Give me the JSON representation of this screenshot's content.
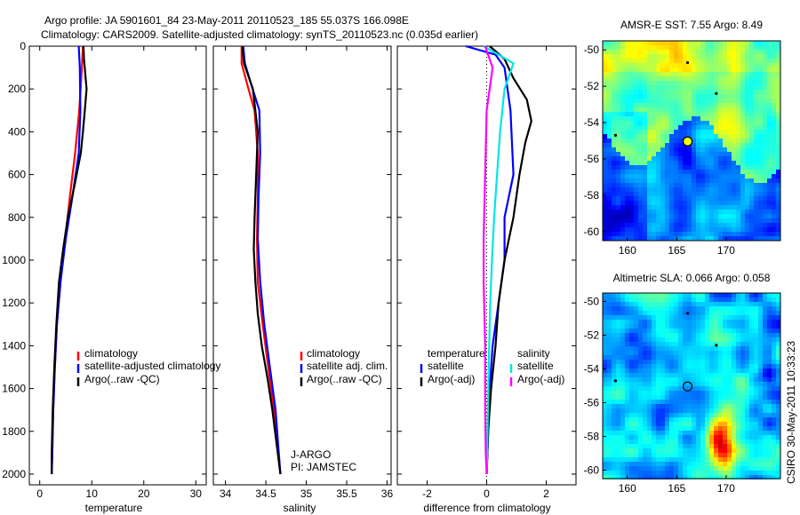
{
  "header": {
    "line1": "Argo profile: JA 5901601_84 23-May-2011 20110523_185 55.037S 166.098E",
    "line2": "Climatology: CARS2009. Satellite-adjusted climatology: synTS_20110523.nc (0.035d earlier)"
  },
  "footer": {
    "credit": "CSIRO 30-May-2011 10:33:23",
    "agency": "J-ARGO",
    "pi": "PI: JAMSTEC"
  },
  "colors": {
    "climatology": "#ff0000",
    "satellite": "#0000ff",
    "argo": "#000000",
    "salinity_satellite": "#00e5e5",
    "salinity_argo": "#ff00ff"
  },
  "chart_data": [
    {
      "id": "temperature",
      "type": "line",
      "xlabel": "temperature",
      "ylabel": "",
      "xlim": [
        -2,
        32
      ],
      "ylim": [
        2050,
        0
      ],
      "xticks": [
        "0",
        "10",
        "20",
        "30"
      ],
      "xtick_values": [
        0,
        10,
        20,
        30
      ],
      "yticks": [
        "0",
        "200",
        "400",
        "600",
        "800",
        "1000",
        "1200",
        "1400",
        "1600",
        "1800",
        "2000"
      ],
      "ytick_values": [
        0,
        200,
        400,
        600,
        800,
        1000,
        1200,
        1400,
        1600,
        1800,
        2000
      ],
      "legend": [
        "climatology",
        "satellite-adjusted climatology",
        "Argo(..raw -QC)"
      ],
      "series": [
        {
          "name": "climatology",
          "color": "#ff0000",
          "x": [
            8.3,
            8.1,
            7.6,
            6.8,
            5.8,
            4.9,
            4.0,
            3.3,
            2.9,
            2.6,
            2.4,
            2.3
          ],
          "y": [
            0,
            100,
            300,
            500,
            700,
            900,
            1100,
            1300,
            1500,
            1700,
            1900,
            2000
          ]
        },
        {
          "name": "satellite-adjusted climatology",
          "color": "#0000ff",
          "x": [
            7.5,
            7.7,
            7.8,
            7.5,
            6.3,
            5.0,
            4.0,
            3.3,
            2.9,
            2.6,
            2.4,
            2.3
          ],
          "y": [
            0,
            100,
            300,
            500,
            700,
            900,
            1100,
            1300,
            1500,
            1700,
            1900,
            2000
          ]
        },
        {
          "name": "Argo(..raw -QC)",
          "color": "#000000",
          "x": [
            8.4,
            8.5,
            9.0,
            8.6,
            8.3,
            7.9,
            6.7,
            5.4,
            4.5,
            3.7,
            3.2,
            2.8,
            2.5,
            2.3,
            2.3
          ],
          "y": [
            0,
            60,
            200,
            320,
            400,
            500,
            650,
            800,
            950,
            1100,
            1300,
            1500,
            1700,
            1900,
            2000
          ]
        }
      ]
    },
    {
      "id": "salinity",
      "type": "line",
      "xlabel": "salinity",
      "ylabel": "",
      "xlim": [
        33.85,
        36.05
      ],
      "ylim": [
        2050,
        0
      ],
      "xticks": [
        "34",
        "34.5",
        "35",
        "35.5",
        "36"
      ],
      "xtick_values": [
        34,
        34.5,
        35,
        35.5,
        36
      ],
      "legend": [
        "climatology",
        "satellite adj. clim.",
        "Argo(..raw -QC)"
      ],
      "series": [
        {
          "name": "climatology",
          "color": "#ff0000",
          "x": [
            34.2,
            34.2,
            34.27,
            34.36,
            34.4,
            34.4,
            34.39,
            34.4,
            34.46,
            34.53,
            34.6,
            34.65,
            34.68
          ],
          "y": [
            0,
            80,
            180,
            300,
            500,
            700,
            900,
            1100,
            1300,
            1500,
            1700,
            1900,
            2000
          ]
        },
        {
          "name": "satellite adj. clim.",
          "color": "#0000ff",
          "x": [
            34.22,
            34.24,
            34.32,
            34.42,
            34.43,
            34.41,
            34.4,
            34.43,
            34.48,
            34.55,
            34.62,
            34.66,
            34.68
          ],
          "y": [
            0,
            80,
            180,
            300,
            500,
            700,
            900,
            1100,
            1300,
            1500,
            1700,
            1900,
            2000
          ]
        },
        {
          "name": "Argo(..raw -QC)",
          "color": "#000000",
          "x": [
            34.21,
            34.23,
            34.34,
            34.4,
            34.38,
            34.36,
            34.35,
            34.37,
            34.4,
            34.45,
            34.52,
            34.58,
            34.63,
            34.68
          ],
          "y": [
            0,
            80,
            200,
            400,
            600,
            800,
            950,
            1100,
            1250,
            1400,
            1550,
            1700,
            1850,
            2000
          ]
        }
      ]
    },
    {
      "id": "difference",
      "type": "line",
      "xlabel": "difference from climatology",
      "ylabel": "",
      "xlim": [
        -3,
        3
      ],
      "ylim": [
        2050,
        0
      ],
      "xticks": [
        "-2",
        "0",
        "2"
      ],
      "xtick_values": [
        -2,
        0,
        2
      ],
      "legend_groups": [
        {
          "title": "temperature",
          "entries": [
            "satellite",
            "Argo(-adj)"
          ]
        },
        {
          "title": "salinity",
          "entries": [
            "satellite",
            "Argo(-adj)"
          ]
        }
      ],
      "series": [
        {
          "name": "temperature satellite",
          "color": "#0000ff",
          "x": [
            -0.7,
            0.3,
            0.6,
            0.8,
            0.9,
            0.6,
            0.6,
            0.4,
            0.2,
            0.1,
            0.05,
            0.0
          ],
          "y": [
            0,
            40,
            100,
            300,
            600,
            800,
            1000,
            1200,
            1400,
            1600,
            1800,
            2000
          ]
        },
        {
          "name": "temperature Argo(-adj)",
          "color": "#000000",
          "x": [
            0.1,
            0.6,
            0.9,
            1.35,
            1.5,
            1.3,
            1.1,
            0.9,
            0.6,
            0.4,
            0.3,
            0.15,
            0.05,
            0.0
          ],
          "y": [
            0,
            60,
            150,
            250,
            350,
            450,
            600,
            800,
            1000,
            1200,
            1400,
            1600,
            1800,
            2000
          ]
        },
        {
          "name": "salinity satellite",
          "color": "#00e5e5",
          "x": [
            -0.1,
            0.9,
            0.6,
            0.45,
            0.35,
            0.25,
            0.18,
            0.12,
            0.07,
            0.03,
            0.0
          ],
          "y": [
            0,
            80,
            200,
            400,
            600,
            800,
            1000,
            1200,
            1500,
            1800,
            2000
          ]
        },
        {
          "name": "salinity Argo(-adj)",
          "color": "#ff00ff",
          "x": [
            -0.05,
            0.2,
            0.0,
            -0.05,
            -0.1,
            -0.1,
            -0.05,
            -0.05,
            -0.03,
            0.0
          ],
          "y": [
            0,
            100,
            300,
            600,
            900,
            1100,
            1400,
            1700,
            1900,
            2000
          ]
        }
      ]
    },
    {
      "id": "sst_map",
      "type": "heatmap",
      "title": "AMSR-E SST: 7.55 Argo: 8.49",
      "xlim": [
        157.5,
        175.5
      ],
      "ylim": [
        -60.5,
        -49.5
      ],
      "xticks": [
        "160",
        "165",
        "170"
      ],
      "xtick_values": [
        160,
        165,
        170
      ],
      "yticks": [
        "-50",
        "-52",
        "-54",
        "-56",
        "-58",
        "-60"
      ],
      "ytick_values": [
        -50,
        -52,
        -54,
        -56,
        -58,
        -60
      ],
      "argo_position": [
        166.098,
        -55.037
      ],
      "track_marks": [
        [
          166.1,
          -50.7
        ],
        [
          169.0,
          -52.4
        ],
        [
          158.8,
          -54.7
        ]
      ]
    },
    {
      "id": "sla_map",
      "type": "heatmap",
      "title": "Altimetric SLA: 0.066 Argo: 0.058",
      "xlim": [
        157.5,
        175.5
      ],
      "ylim": [
        -60.5,
        -49.5
      ],
      "xticks": [
        "160",
        "165",
        "170"
      ],
      "xtick_values": [
        160,
        165,
        170
      ],
      "yticks": [
        "-50",
        "-52",
        "-54",
        "-56",
        "-58",
        "-60"
      ],
      "ytick_values": [
        -50,
        -52,
        -54,
        -56,
        -58,
        -60
      ],
      "argo_position": [
        166.098,
        -55.037
      ],
      "track_marks": [
        [
          166.1,
          -50.7
        ],
        [
          169.0,
          -52.6
        ],
        [
          158.8,
          -54.7
        ]
      ]
    }
  ]
}
